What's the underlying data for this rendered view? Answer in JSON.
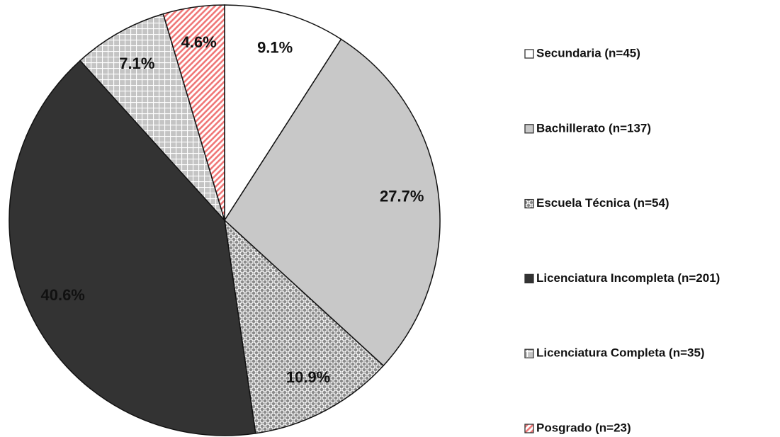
{
  "chart_data": {
    "type": "pie",
    "categories": [
      "Secundaria (n=45)",
      "Bachillerato (n=137)",
      "Escuela Técnica (n=54)",
      "Licenciatura Incompleta (n=201)",
      "Licenciatura Completa (n=35)",
      "Posgrado (n=23)"
    ],
    "values": [
      9.1,
      27.7,
      10.9,
      40.6,
      7.1,
      4.6
    ],
    "value_labels": [
      "9.1%",
      "27.7%",
      "10.9%",
      "40.6%",
      "7.1%",
      "4.6%"
    ],
    "colors": [
      "#ffffff",
      "#c8c8c8",
      "#8a8a8a",
      "#333333",
      "#c4c4c4",
      "#f07878"
    ],
    "patterns": [
      "solid",
      "solid",
      "dots",
      "solid",
      "grid",
      "stripes"
    ],
    "legend": "right"
  }
}
